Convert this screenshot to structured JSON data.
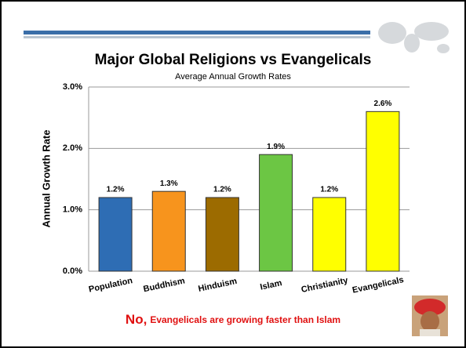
{
  "chart_data": {
    "type": "bar",
    "title": "Major Global Religions vs Evangelicals",
    "subtitle": "Average Annual Growth Rates",
    "y_label": "Annual Growth Rate",
    "categories": [
      "Population",
      "Buddhism",
      "Hinduism",
      "Islam",
      "Christianity",
      "Evangelicals"
    ],
    "values": [
      1.2,
      1.3,
      1.2,
      1.9,
      1.2,
      2.6
    ],
    "value_labels": [
      "1.2%",
      "1.3%",
      "1.2%",
      "1.9%",
      "1.2%",
      "2.6%"
    ],
    "colors": [
      "#2e6db4",
      "#f7941d",
      "#9c6b00",
      "#6cc644",
      "#ffff00",
      "#ffff00"
    ],
    "ylim": [
      0,
      3
    ],
    "yticks": [
      {
        "value": 0,
        "label": "0.0%"
      },
      {
        "value": 1,
        "label": "1.0%"
      },
      {
        "value": 2,
        "label": "2.0%"
      },
      {
        "value": 3,
        "label": "3.0%"
      }
    ],
    "grid": true
  },
  "annotation": {
    "lead": "No,",
    "text": "Evangelicals are growing faster than Islam"
  }
}
